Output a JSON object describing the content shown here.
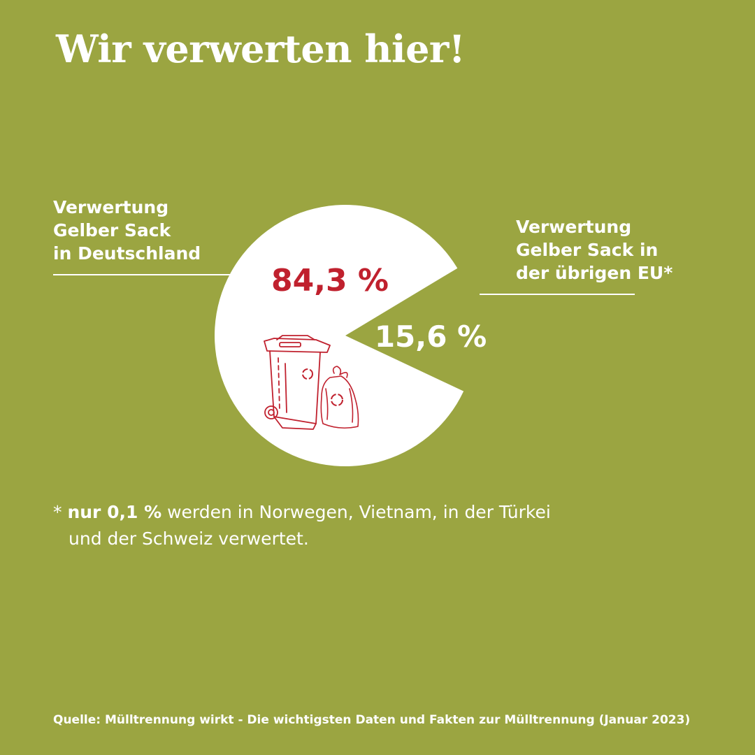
{
  "title": "Wir verwerten hier!",
  "colors": {
    "background": "#9ba541",
    "pie_fill": "#ffffff",
    "accent_red": "#c0212e",
    "text": "#ffffff"
  },
  "chart_data": {
    "type": "pie",
    "start_angle_deg": 31,
    "slices": [
      {
        "label_lines": [
          "Verwertung",
          "Gelber Sack",
          "in Deutschland"
        ],
        "value": 84.3,
        "display": "84,3 %",
        "filled": true
      },
      {
        "label_lines": [
          "Verwertung",
          "Gelber Sack in",
          "der übrigen EU*"
        ],
        "value": 15.6,
        "display": "15,6 %",
        "filled": false
      }
    ]
  },
  "illustration": {
    "icons": [
      "wheelie-bin-icon",
      "trash-bag-icon",
      "recycle-symbol-icon"
    ]
  },
  "footnote": {
    "marker": "*",
    "bold": "nur 0,1 %",
    "text_line1": " werden in Norwegen, Vietnam, in der Türkei",
    "text_line2": "und der Schweiz  verwertet."
  },
  "source": "Quelle: Mülltrennung wirkt - Die wichtigsten Daten und Fakten zur Mülltrennung (Januar 2023)"
}
